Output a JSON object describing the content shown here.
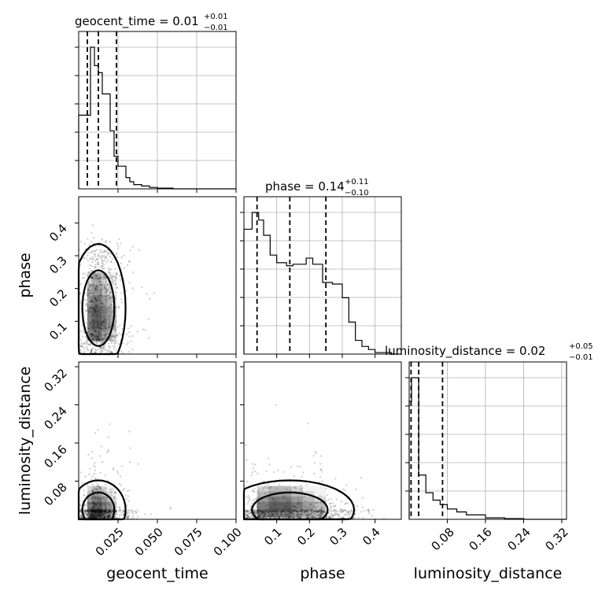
{
  "chart_data": {
    "type": "corner",
    "parameters": [
      "geocent_time",
      "phase",
      "luminosity_distance"
    ],
    "titles": {
      "geocent_time": {
        "prefix": "geocent_time = 0.01",
        "plus": "+0.01",
        "minus": "−0.01"
      },
      "phase": {
        "prefix": "phase = 0.14",
        "plus": "+0.11",
        "minus": "−0.10"
      },
      "luminosity_distance": {
        "prefix": "luminosity_distance = 0.02",
        "plus": "+0.05",
        "minus": "−0.01"
      }
    },
    "axis_labels": {
      "x": [
        "geocent_time",
        "phase",
        "luminosity_distance"
      ],
      "y": [
        "phase",
        "luminosity_distance"
      ]
    },
    "ranges": {
      "geocent_time": [
        0.0,
        0.1
      ],
      "phase": [
        0.0,
        0.48
      ],
      "luminosity_distance": [
        0.0,
        0.33
      ]
    },
    "ticks": {
      "geocent_time": {
        "values": [
          0.025,
          0.05,
          0.075,
          0.1
        ],
        "labels": [
          "0.025",
          "0.050",
          "0.075",
          "0.100"
        ]
      },
      "phase": {
        "values": [
          0.1,
          0.2,
          0.3,
          0.4
        ],
        "labels": [
          "0.1",
          "0.2",
          "0.3",
          "0.4"
        ]
      },
      "luminosity_distance": {
        "values": [
          0.08,
          0.16,
          0.24,
          0.32
        ],
        "labels": [
          "0.08",
          "0.16",
          "0.24",
          "0.32"
        ]
      }
    },
    "quantiles": {
      "geocent_time": [
        0.0055,
        0.0125,
        0.024
      ],
      "phase": [
        0.04,
        0.14,
        0.25
      ],
      "luminosity_distance": [
        0.004,
        0.02,
        0.07
      ]
    },
    "histograms": {
      "geocent_time": {
        "edges": [
          0.0,
          0.005,
          0.0075,
          0.01,
          0.0125,
          0.015,
          0.0175,
          0.02,
          0.0225,
          0.025,
          0.03,
          0.0325,
          0.035,
          0.04,
          0.045,
          0.05,
          0.06,
          0.1
        ],
        "counts": [
          0.52,
          0.52,
          1.0,
          0.87,
          0.82,
          0.67,
          0.67,
          0.41,
          0.23,
          0.16,
          0.08,
          0.05,
          0.03,
          0.02,
          0.01,
          0.005,
          0.0
        ]
      },
      "phase": {
        "edges": [
          0.0,
          0.025,
          0.045,
          0.06,
          0.08,
          0.1,
          0.13,
          0.15,
          0.17,
          0.19,
          0.21,
          0.23,
          0.24,
          0.27,
          0.3,
          0.32,
          0.34,
          0.36,
          0.38,
          0.4,
          0.45,
          0.48
        ],
        "counts": [
          0.82,
          0.93,
          0.88,
          0.78,
          0.65,
          0.6,
          0.58,
          0.59,
          0.59,
          0.63,
          0.59,
          0.59,
          0.47,
          0.46,
          0.37,
          0.21,
          0.09,
          0.05,
          0.03,
          0.01,
          0.0
        ]
      },
      "luminosity_distance": {
        "edges": [
          0.0,
          0.005,
          0.015,
          0.02,
          0.035,
          0.05,
          0.065,
          0.08,
          0.1,
          0.12,
          0.16,
          0.2,
          0.24,
          0.33
        ],
        "counts": [
          0.8,
          0.96,
          0.96,
          0.3,
          0.18,
          0.13,
          0.1,
          0.07,
          0.05,
          0.03,
          0.01,
          0.005,
          0.0
        ]
      }
    },
    "grid": true
  }
}
